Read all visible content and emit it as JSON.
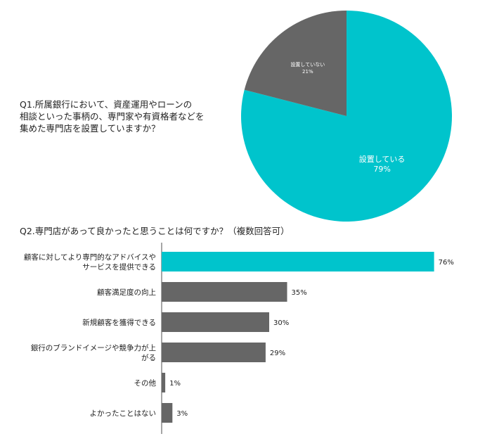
{
  "colors": {
    "highlight": "#00c4cc",
    "default": "#666666"
  },
  "chart_data": [
    {
      "type": "pie",
      "title": "Q1.所属銀行において、資産運用やローンの相談といった事柄の、専門家や有資格者などを集めた専門店を設置していますか？",
      "title_lines": [
        "Q1.所属銀行において、資産運用やローンの",
        "相談といった事柄の、専門家や有資格者などを",
        "集めた専門店を設置していますか？"
      ],
      "slices": [
        {
          "label": "設置している",
          "value": 79,
          "value_label": "79%",
          "color": "#00c4cc"
        },
        {
          "label": "設置していない",
          "value": 21,
          "value_label": "21%",
          "color": "#666666"
        }
      ]
    },
    {
      "type": "bar",
      "orientation": "horizontal",
      "title": "Q2.専門店があって良かったと思うことは何ですか？（複数回答可）",
      "categories": [
        [
          "顧客に対してより専門的なアドバイスや",
          "サービスを提供できる"
        ],
        [
          "顧客満足度の向上"
        ],
        [
          "新規顧客を獲得できる"
        ],
        [
          "銀行のブランドイメージや競争力が上",
          "がる"
        ],
        [
          "その他"
        ],
        [
          "よかったことはない"
        ]
      ],
      "values": [
        76,
        35,
        30,
        29,
        1,
        3
      ],
      "value_labels": [
        "76%",
        "35%",
        "30%",
        "29%",
        "1%",
        "3%"
      ],
      "bar_colors": [
        "#00c4cc",
        "#666666",
        "#666666",
        "#666666",
        "#666666",
        "#666666"
      ]
    }
  ]
}
